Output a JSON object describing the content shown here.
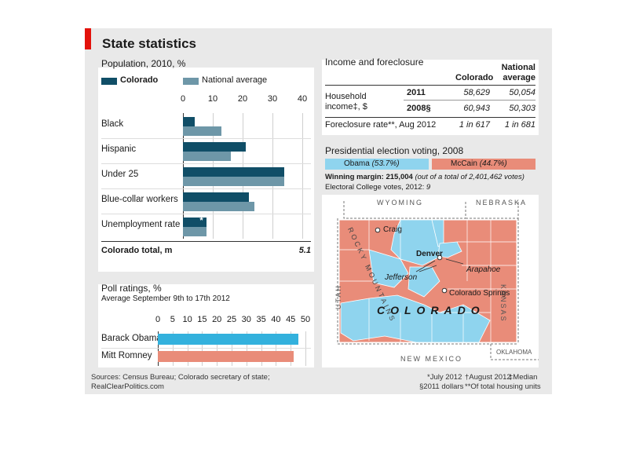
{
  "title": "State statistics",
  "colors": {
    "colorado": "#104e67",
    "national": "#6e97a8",
    "obama": "#33b1dd",
    "romney": "#e98c79",
    "mccain": "#e98c79",
    "map_obama": "#8fd4ee",
    "accent": "#e3120b"
  },
  "population": {
    "title": "Population, 2010, %",
    "legend": [
      "Colorado",
      "National average"
    ],
    "total_label": "Colorado total, m",
    "total_value": "5.1",
    "asterisk": "*"
  },
  "poll": {
    "title": "Poll ratings, %",
    "subtitle": "Average September 9th to 17th 2012"
  },
  "income": {
    "title": "Income and foreclosure",
    "col_colorado": "Colorado",
    "col_national_1": "National",
    "col_national_2": "average",
    "row_income_label_1": "Household",
    "row_income_label_2": "income‡, $",
    "year_2011": "2011",
    "year_2008": "2008§",
    "income_2011_colorado": "58,629",
    "income_2011_national": "50,054",
    "income_2008_colorado": "60,943",
    "income_2008_national": "50,303",
    "foreclosure_label": "Foreclosure rate**, Aug 2012",
    "foreclosure_colorado": "1 in 617",
    "foreclosure_national": "1 in 681"
  },
  "election": {
    "title": "Presidential election voting, 2008",
    "obama_label": "Obama",
    "obama_pct": "(53.7%)",
    "mccain_label": "McCain",
    "mccain_pct": "(44.7%)",
    "margin_label": "Winning margin: 215,004",
    "margin_note": "(out of a total of 2,401,462 votes)",
    "ec_label": "Electoral College votes, 2012:",
    "ec_value": "9"
  },
  "map": {
    "states": {
      "wyoming": "WYOMING",
      "nebraska": "NEBRASKA",
      "kansas": "KANSAS",
      "utah": "UTAH",
      "new_mexico": "NEW MEXICO",
      "oklahoma": "OKLAHOMA"
    },
    "colorado": "COLORADO",
    "rocky": "ROCKY MOUNTAINS",
    "cities": {
      "craig": "Craig",
      "denver": "Denver",
      "jefferson": "Jefferson",
      "arapahoe": "Arapahoe",
      "colorado_springs": "Colorado Springs"
    }
  },
  "footer": {
    "sources_1": "Sources: Census Bureau; Colorado secretary of state;",
    "sources_2": "RealClearPolitics.com",
    "note_1": "*July 2012",
    "note_2": "†August 2012",
    "note_3": "‡Median",
    "note_4": "§2011 dollars",
    "note_5": "**Of total housing units"
  },
  "chart_data": [
    {
      "type": "bar",
      "title": "Population, 2010, %",
      "categories": [
        "Black",
        "Hispanic",
        "Under 25",
        "Blue-collar workers",
        "Unemployment rate"
      ],
      "series": [
        {
          "name": "Colorado",
          "values": [
            4,
            21,
            34,
            22,
            8
          ]
        },
        {
          "name": "National average",
          "values": [
            13,
            16,
            34,
            24,
            8
          ]
        }
      ],
      "xlim": [
        0,
        40
      ],
      "ticks": [
        "0",
        "10",
        "20",
        "30",
        "40"
      ]
    },
    {
      "type": "bar",
      "title": "Poll ratings, %",
      "categories": [
        "Barack Obama",
        "Mitt Romney"
      ],
      "values": [
        47.5,
        46
      ],
      "xlim": [
        0,
        50
      ],
      "ticks": [
        "0",
        "5",
        "10",
        "15",
        "20",
        "25",
        "30",
        "35",
        "40",
        "45",
        "50"
      ]
    }
  ]
}
